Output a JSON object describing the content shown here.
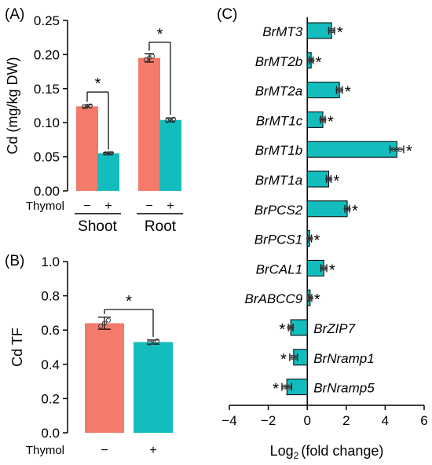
{
  "colors": {
    "salmon": "#F47A6B",
    "teal": "#14BDBD",
    "axis": "#000000"
  },
  "chart_data": [
    {
      "panel": "(A)",
      "type": "bar",
      "ylabel": "Cd (mg/kg DW)",
      "ylim": [
        0,
        0.25
      ],
      "yticks": [
        "0.00",
        "0.05",
        "0.10",
        "0.15",
        "0.20",
        "0.25"
      ],
      "treatment_label": "Thymol",
      "groups": [
        "Shoot",
        "Root"
      ],
      "treatment_marks": [
        "−",
        "+"
      ],
      "significance": [
        "*",
        "*"
      ],
      "bars": [
        {
          "group": "Shoot",
          "treatment": "−",
          "value": 0.124,
          "error": 0.002,
          "color": "#F47A6B"
        },
        {
          "group": "Shoot",
          "treatment": "+",
          "value": 0.055,
          "error": 0.001,
          "color": "#14BDBD"
        },
        {
          "group": "Root",
          "treatment": "−",
          "value": 0.195,
          "error": 0.006,
          "color": "#F47A6B"
        },
        {
          "group": "Root",
          "treatment": "+",
          "value": 0.104,
          "error": 0.003,
          "color": "#14BDBD"
        }
      ]
    },
    {
      "panel": "(B)",
      "type": "bar",
      "ylabel": "Cd TF",
      "ylim": [
        0,
        1.0
      ],
      "yticks": [
        "0.0",
        "0.2",
        "0.4",
        "0.6",
        "0.8",
        "1.0"
      ],
      "treatment_label": "Thymol",
      "categories": [
        "−",
        "+"
      ],
      "values": [
        0.64,
        0.53
      ],
      "errors": [
        0.035,
        0.012
      ],
      "colors": [
        "#F47A6B",
        "#14BDBD"
      ],
      "significance": "*"
    },
    {
      "panel": "(C)",
      "type": "bar",
      "orientation": "horizontal",
      "xlabel_main": "Log",
      "xlabel_sub": "2",
      "xlabel_rest": "(fold change)",
      "xlim": [
        -4,
        6
      ],
      "xticks": [
        "−4",
        "−2",
        "0",
        "2",
        "4",
        "6"
      ],
      "color": "#14BDBD",
      "genes": [
        "BrMT3",
        "BrMT2b",
        "BrMT2a",
        "BrMT1c",
        "BrMT1b",
        "BrMT1a",
        "BrPCS2",
        "BrPCS1",
        "BrCAL1",
        "BrABCC9",
        "BrZIP7",
        "BrNramp1",
        "BrNramp5"
      ],
      "values": [
        1.25,
        0.2,
        1.65,
        0.8,
        4.6,
        1.1,
        2.05,
        0.12,
        0.85,
        0.15,
        -0.85,
        -0.7,
        -1.05
      ],
      "errors": [
        0.15,
        0.1,
        0.15,
        0.12,
        0.35,
        0.12,
        0.12,
        0.1,
        0.15,
        0.08,
        0.12,
        0.2,
        0.25
      ],
      "significance": [
        "*",
        "*",
        "*",
        "*",
        "*",
        "*",
        "*",
        "*",
        "*",
        "*",
        "*",
        "*",
        "*"
      ]
    }
  ]
}
